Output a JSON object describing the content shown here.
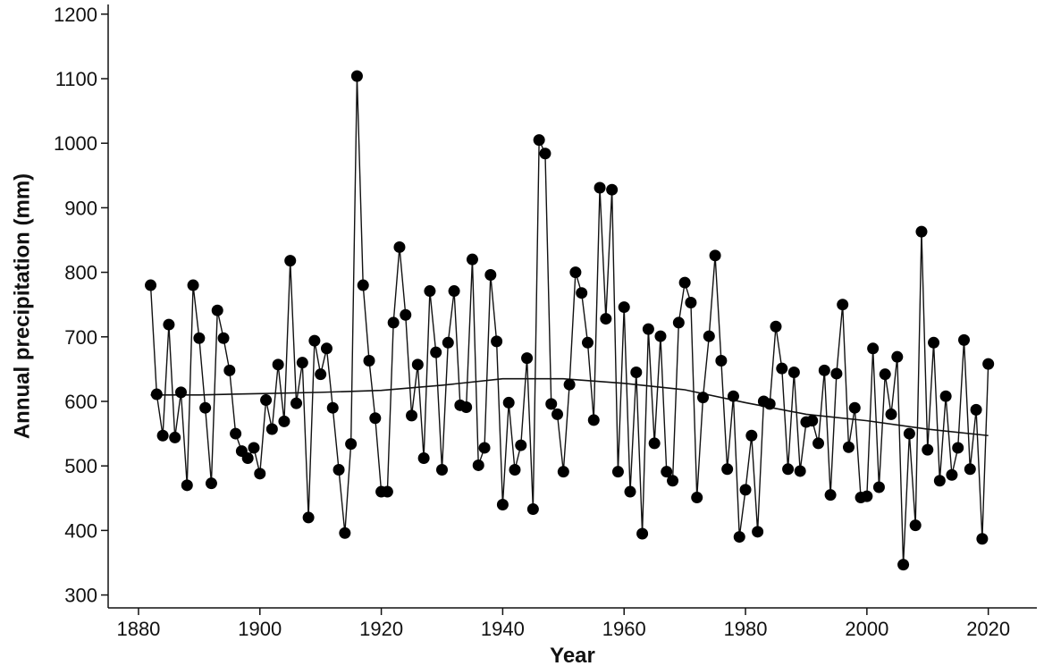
{
  "chart_data": {
    "type": "line",
    "xlabel": "Year",
    "ylabel": "Annual precipitation (mm)",
    "xlim": [
      1875,
      2028
    ],
    "ylim": [
      280,
      1215
    ],
    "x_ticks": [
      1880,
      1900,
      1920,
      1940,
      1960,
      1980,
      2000,
      2020
    ],
    "y_ticks": [
      300,
      400,
      500,
      600,
      700,
      800,
      900,
      1000,
      1100,
      1200
    ],
    "grid": false,
    "series": [
      {
        "style": "line-with-markers",
        "x": [
          1882,
          1883,
          1884,
          1885,
          1886,
          1887,
          1888,
          1889,
          1890,
          1891,
          1892,
          1893,
          1894,
          1895,
          1896,
          1897,
          1898,
          1899,
          1900,
          1901,
          1902,
          1903,
          1904,
          1905,
          1906,
          1907,
          1908,
          1909,
          1910,
          1911,
          1912,
          1913,
          1914,
          1915,
          1916,
          1917,
          1918,
          1919,
          1920,
          1921,
          1922,
          1923,
          1924,
          1925,
          1926,
          1927,
          1928,
          1929,
          1930,
          1931,
          1932,
          1933,
          1934,
          1935,
          1936,
          1937,
          1938,
          1939,
          1940,
          1941,
          1942,
          1943,
          1944,
          1945,
          1946,
          1947,
          1948,
          1949,
          1950,
          1951,
          1952,
          1953,
          1954,
          1955,
          1956,
          1957,
          1958,
          1959,
          1960,
          1961,
          1962,
          1963,
          1964,
          1965,
          1966,
          1967,
          1968,
          1969,
          1970,
          1971,
          1972,
          1973,
          1974,
          1975,
          1976,
          1977,
          1978,
          1979,
          1980,
          1981,
          1982,
          1983,
          1984,
          1985,
          1986,
          1987,
          1988,
          1989,
          1990,
          1991,
          1992,
          1993,
          1994,
          1995,
          1996,
          1997,
          1998,
          1999,
          2000,
          2001,
          2002,
          2003,
          2004,
          2005,
          2006,
          2007,
          2008,
          2009,
          2010,
          2011,
          2012,
          2013,
          2014,
          2015,
          2016,
          2017,
          2018,
          2019,
          2020
        ],
        "y": [
          780,
          611,
          547,
          719,
          544,
          614,
          470,
          780,
          698,
          590,
          473,
          741,
          698,
          648,
          550,
          523,
          512,
          528,
          488,
          602,
          557,
          657,
          569,
          818,
          597,
          660,
          420,
          694,
          642,
          682,
          590,
          494,
          396,
          534,
          1104,
          780,
          663,
          574,
          460,
          460,
          722,
          839,
          734,
          578,
          657,
          512,
          771,
          676,
          494,
          691,
          771,
          594,
          591,
          820,
          501,
          528,
          796,
          693,
          440,
          598,
          494,
          532,
          667,
          433,
          1005,
          984,
          596,
          580,
          491,
          626,
          800,
          768,
          691,
          571,
          931,
          728,
          928,
          491,
          746,
          460,
          645,
          395,
          712,
          535,
          701,
          491,
          477,
          722,
          784,
          753,
          451,
          606,
          701,
          826,
          663,
          495,
          608,
          390,
          463,
          547,
          398,
          600,
          596,
          716,
          651,
          495,
          645,
          492,
          568,
          570,
          535,
          648,
          455,
          643,
          750,
          529,
          590,
          451,
          453,
          682,
          467,
          642,
          580,
          669,
          347,
          550,
          408,
          863,
          525,
          691,
          477,
          608,
          486,
          528,
          695,
          495,
          587,
          387,
          658
        ]
      },
      {
        "style": "trend-line",
        "x": [
          1882,
          1890,
          1900,
          1910,
          1920,
          1930,
          1940,
          1950,
          1960,
          1970,
          1980,
          1990,
          2000,
          2010,
          2020
        ],
        "y": [
          610,
          610,
          612,
          614,
          617,
          625,
          635,
          635,
          628,
          618,
          598,
          580,
          570,
          557,
          547
        ]
      }
    ]
  }
}
